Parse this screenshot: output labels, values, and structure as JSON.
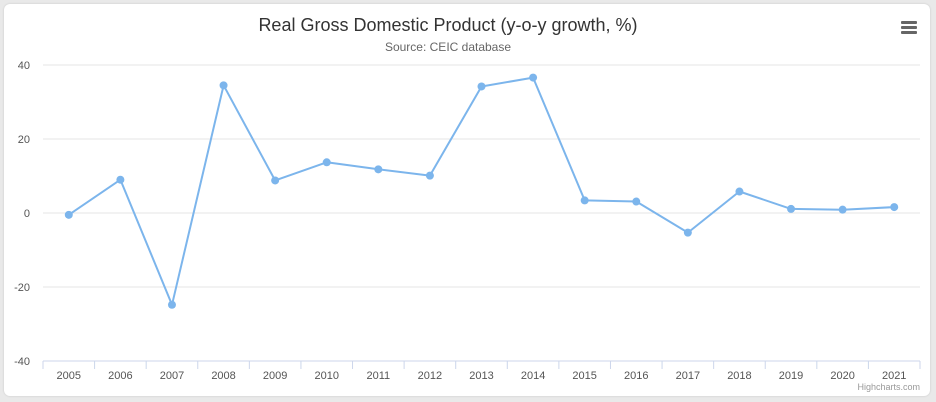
{
  "chart_data": {
    "type": "line",
    "title": "Real Gross Domestic Product (y-o-y growth, %)",
    "subtitle": "Source: CEIC database",
    "categories": [
      "2005",
      "2006",
      "2007",
      "2008",
      "2009",
      "2010",
      "2011",
      "2012",
      "2013",
      "2014",
      "2015",
      "2016",
      "2017",
      "2018",
      "2019",
      "2020",
      "2021"
    ],
    "series": [
      {
        "values": [
          -0.5,
          9.0,
          -24.8,
          34.5,
          8.8,
          13.7,
          11.8,
          10.1,
          34.2,
          36.6,
          3.4,
          3.1,
          -5.3,
          5.8,
          1.1,
          0.9,
          1.6
        ]
      }
    ],
    "ylim": [
      -40,
      40
    ],
    "yticks": [
      -40,
      -20,
      0,
      20,
      40
    ],
    "grid": true,
    "legend": "none",
    "colors": {
      "series": "#7cb5ec",
      "grid": "#e6e6e6",
      "axis": "#ccd6eb"
    }
  },
  "credits": "Highcharts.com",
  "menu_icon": "hamburger-menu-icon"
}
